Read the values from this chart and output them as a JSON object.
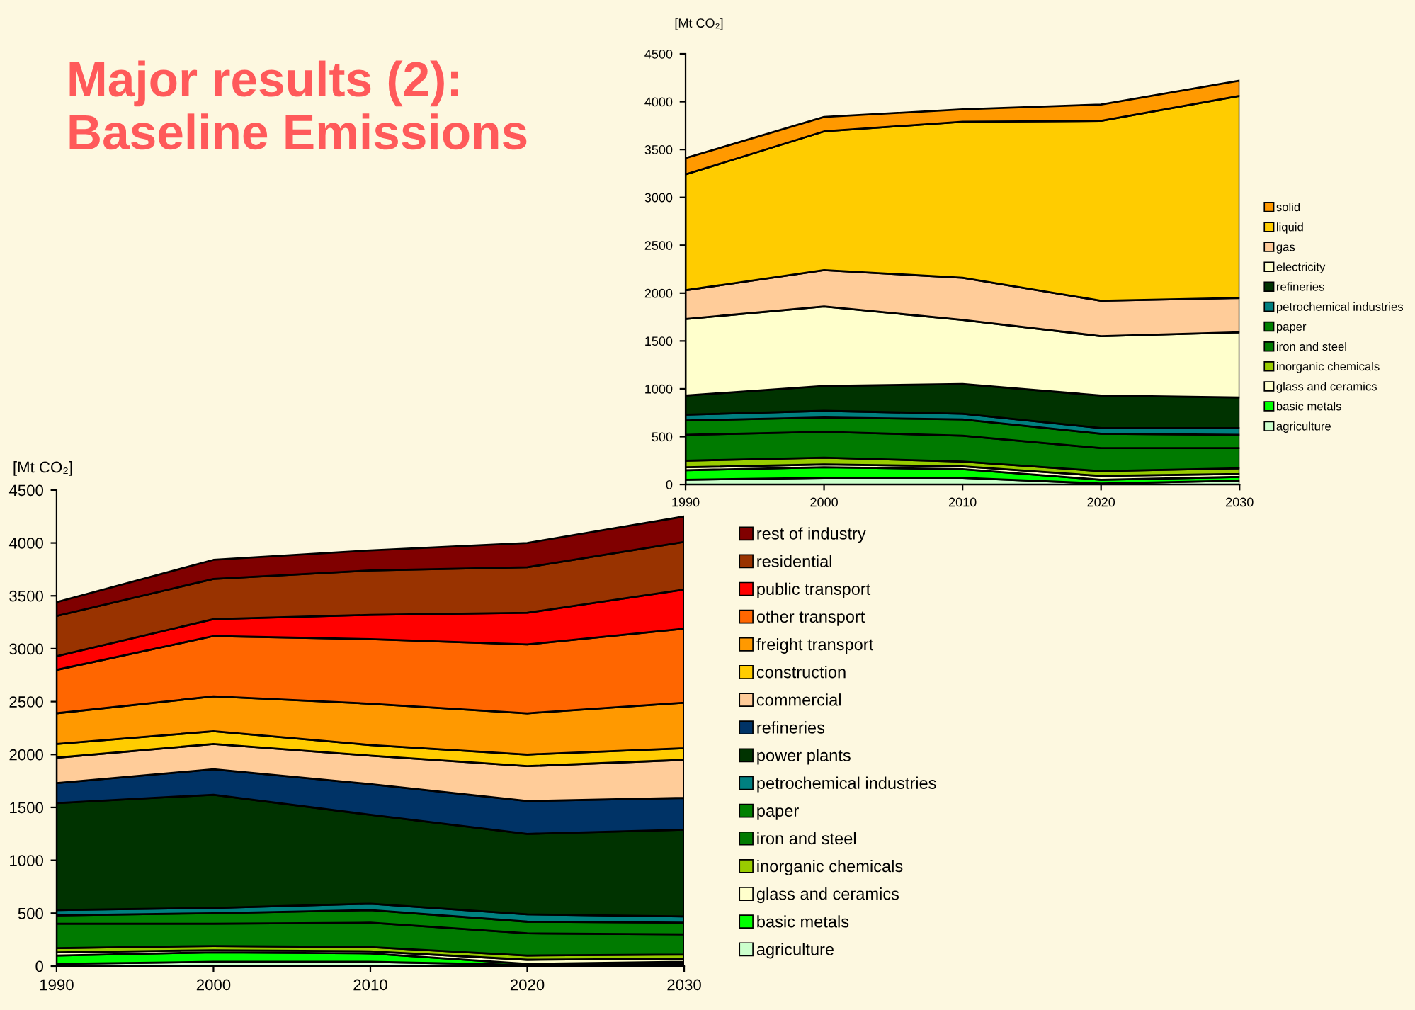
{
  "chart_data": [
    {
      "type": "area",
      "stacked": true,
      "title": "Major results (2):\nBaseline Emissions",
      "ylabel": "[Mt CO₂]",
      "x": [
        1990,
        2000,
        2010,
        2020,
        2030
      ],
      "xlim": [
        1990,
        2030
      ],
      "xticks": [
        1990,
        2000,
        2010,
        2020,
        2030
      ],
      "ylim": [
        0,
        4500
      ],
      "yticks": [
        0,
        500,
        1000,
        1500,
        2000,
        2500,
        3000,
        3500,
        4000,
        4500
      ],
      "grid": false,
      "legend": "right",
      "series": [
        {
          "name": "agriculture",
          "color": "#ccffcc",
          "values": [
            50,
            70,
            70,
            10,
            40
          ]
        },
        {
          "name": "basic metals",
          "color": "#00ff00",
          "values": [
            100,
            110,
            90,
            40,
            40
          ]
        },
        {
          "name": "glass and ceramics",
          "color": "#ffffcc",
          "values": [
            30,
            30,
            30,
            40,
            30
          ]
        },
        {
          "name": "inorganic chemicals",
          "color": "#99cc00",
          "values": [
            70,
            70,
            50,
            50,
            60
          ]
        },
        {
          "name": "iron and steel",
          "color": "#007a00",
          "values": [
            270,
            270,
            270,
            240,
            210
          ]
        },
        {
          "name": "paper",
          "color": "#008000",
          "values": [
            150,
            150,
            170,
            150,
            140
          ]
        },
        {
          "name": "petrochemical industries",
          "color": "#008080",
          "values": [
            60,
            70,
            60,
            60,
            70
          ]
        },
        {
          "name": "refineries",
          "color": "#003300",
          "values": [
            200,
            260,
            310,
            340,
            320
          ]
        },
        {
          "name": "electricity",
          "color": "#ffffcc",
          "values": [
            800,
            830,
            670,
            620,
            680
          ]
        },
        {
          "name": "gas",
          "color": "#ffcc99",
          "values": [
            300,
            380,
            440,
            370,
            360
          ]
        },
        {
          "name": "liquid",
          "color": "#ffcc00",
          "values": [
            1210,
            1450,
            1630,
            1880,
            2110
          ]
        },
        {
          "name": "solid",
          "color": "#ff9900",
          "values": [
            170,
            150,
            130,
            170,
            160
          ]
        }
      ]
    },
    {
      "type": "area",
      "stacked": true,
      "ylabel": "[Mt CO₂]",
      "x": [
        1990,
        2000,
        2010,
        2020,
        2030
      ],
      "xlim": [
        1990,
        2030
      ],
      "xticks": [
        1990,
        2000,
        2010,
        2020,
        2030
      ],
      "ylim": [
        0,
        4500
      ],
      "yticks": [
        0,
        500,
        1000,
        1500,
        2000,
        2500,
        3000,
        3500,
        4000,
        4500
      ],
      "grid": false,
      "legend": "right",
      "series": [
        {
          "name": "agriculture",
          "color": "#ccffcc",
          "values": [
            20,
            40,
            40,
            10,
            20
          ]
        },
        {
          "name": "basic metals",
          "color": "#00ff00",
          "values": [
            80,
            90,
            80,
            10,
            20
          ]
        },
        {
          "name": "glass and ceramics",
          "color": "#ffffcc",
          "values": [
            30,
            20,
            20,
            40,
            30
          ]
        },
        {
          "name": "inorganic chemicals",
          "color": "#99cc00",
          "values": [
            40,
            40,
            40,
            40,
            40
          ]
        },
        {
          "name": "iron and steel",
          "color": "#007a00",
          "values": [
            230,
            210,
            230,
            210,
            190
          ]
        },
        {
          "name": "paper",
          "color": "#008000",
          "values": [
            80,
            100,
            120,
            110,
            110
          ]
        },
        {
          "name": "petrochemical industries",
          "color": "#008080",
          "values": [
            50,
            50,
            60,
            70,
            60
          ]
        },
        {
          "name": "power plants",
          "color": "#003300",
          "values": [
            1010,
            1070,
            840,
            760,
            820
          ]
        },
        {
          "name": "refineries",
          "color": "#003366",
          "values": [
            190,
            240,
            290,
            310,
            300
          ]
        },
        {
          "name": "commercial",
          "color": "#ffcc99",
          "values": [
            240,
            240,
            270,
            330,
            360
          ]
        },
        {
          "name": "construction",
          "color": "#ffcc00",
          "values": [
            130,
            120,
            100,
            110,
            110
          ]
        },
        {
          "name": "freight transport",
          "color": "#ff9900",
          "values": [
            290,
            330,
            390,
            390,
            430
          ]
        },
        {
          "name": "other transport",
          "color": "#ff6600",
          "values": [
            410,
            570,
            610,
            650,
            700
          ]
        },
        {
          "name": "public transport",
          "color": "#ff0000",
          "values": [
            130,
            160,
            230,
            300,
            370
          ]
        },
        {
          "name": "residential",
          "color": "#993300",
          "values": [
            380,
            380,
            420,
            430,
            450
          ]
        },
        {
          "name": "rest of industry",
          "color": "#800000",
          "values": [
            130,
            180,
            190,
            230,
            240
          ]
        }
      ]
    }
  ]
}
